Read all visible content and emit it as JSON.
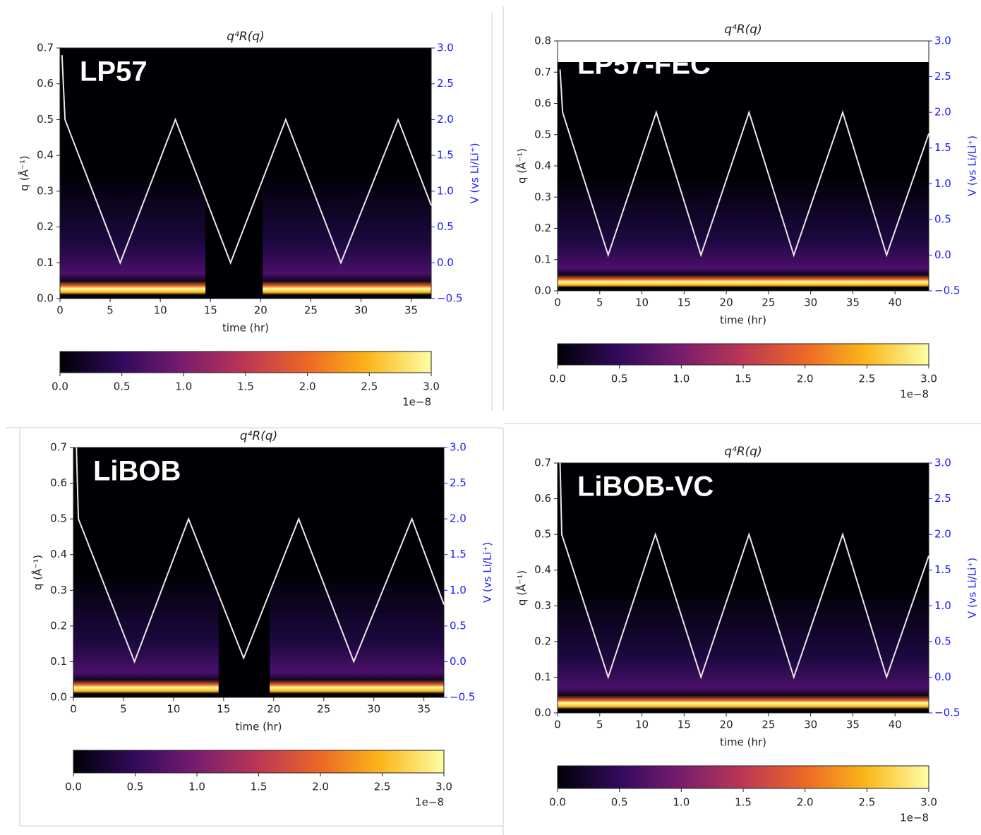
{
  "chart_data": [
    {
      "type": "heatmap",
      "title": "q⁴R(q)",
      "label": "LP57",
      "xlabel": "time (hr)",
      "ylabel": "q (Å⁻¹)",
      "y2label": "V (vs Li/Li⁺)",
      "xlim": [
        0,
        37
      ],
      "xticks": [
        0,
        5,
        10,
        15,
        20,
        25,
        30,
        35
      ],
      "ylim": [
        0,
        0.7
      ],
      "yticks": [
        {
          "value": 0,
          "label": "0.0"
        },
        {
          "value": 0.1,
          "label": "0.1"
        },
        {
          "value": 0.2,
          "label": "0.2"
        },
        {
          "value": 0.3,
          "label": "0.3"
        },
        {
          "value": 0.4,
          "label": "0.4"
        },
        {
          "value": 0.5,
          "label": "0.5"
        },
        {
          "value": 0.6,
          "label": "0.6"
        },
        {
          "value": 0.7,
          "label": "0.7"
        }
      ],
      "y2lim": [
        -0.5,
        3.0
      ],
      "y2ticks": [
        {
          "value": -0.5,
          "label": "−0.5"
        },
        {
          "value": 0,
          "label": "0.0"
        },
        {
          "value": 0.5,
          "label": "0.5"
        },
        {
          "value": 1,
          "label": "1.0"
        },
        {
          "value": 1.5,
          "label": "1.5"
        },
        {
          "value": 2,
          "label": "2.0"
        },
        {
          "value": 2.5,
          "label": "2.5"
        },
        {
          "value": 3,
          "label": "3.0"
        }
      ],
      "series": [
        {
          "color": "#e8e8e8",
          "axis": "y2",
          "x": [
            0.2,
            0.5,
            6,
            11.5,
            17,
            22.5,
            28,
            33.7,
            37
          ],
          "values": [
            2.9,
            2.0,
            0.0,
            2.0,
            0.0,
            2.0,
            0.0,
            2.0,
            0.8
          ]
        }
      ],
      "colorbar": {
        "colormap": "inferno",
        "lim": [
          0,
          3.0
        ],
        "ticks": [
          {
            "value": 0,
            "label": "0.0"
          },
          {
            "value": 0.5,
            "label": "0.5"
          },
          {
            "value": 1,
            "label": "1.0"
          },
          {
            "value": 1.5,
            "label": "1.5"
          },
          {
            "value": 2,
            "label": "2.0"
          },
          {
            "value": 2.5,
            "label": "2.5"
          },
          {
            "value": 3,
            "label": "3.0"
          }
        ],
        "offset_label": "1e−8"
      }
    },
    {
      "type": "heatmap",
      "title": "q⁴R(q)",
      "label": "LP57-FEC",
      "xlabel": "time (hr)",
      "ylabel": "q (Å⁻¹)",
      "y2label": "V (vs Li/Li⁺)",
      "xlim": [
        0,
        44
      ],
      "xticks": [
        0,
        5,
        10,
        15,
        20,
        25,
        30,
        35,
        40
      ],
      "ylim": [
        0,
        0.8
      ],
      "yticks": [
        {
          "value": 0,
          "label": "0.0"
        },
        {
          "value": 0.1,
          "label": "0.1"
        },
        {
          "value": 0.2,
          "label": "0.2"
        },
        {
          "value": 0.3,
          "label": "0.3"
        },
        {
          "value": 0.4,
          "label": "0.4"
        },
        {
          "value": 0.5,
          "label": "0.5"
        },
        {
          "value": 0.6,
          "label": "0.6"
        },
        {
          "value": 0.7,
          "label": "0.7"
        },
        {
          "value": 0.8,
          "label": "0.8"
        }
      ],
      "y2lim": [
        -0.5,
        3.0
      ],
      "y2ticks": [
        {
          "value": -0.5,
          "label": "−0.5"
        },
        {
          "value": 0,
          "label": "0.0"
        },
        {
          "value": 0.5,
          "label": "0.5"
        },
        {
          "value": 1,
          "label": "1.0"
        },
        {
          "value": 1.5,
          "label": "1.5"
        },
        {
          "value": 2,
          "label": "2.0"
        },
        {
          "value": 2.5,
          "label": "2.5"
        },
        {
          "value": 3,
          "label": "3.0"
        }
      ],
      "series": [
        {
          "color": "#e8e8e8",
          "axis": "y2",
          "x": [
            0.3,
            0.6,
            6,
            11.7,
            17,
            22.7,
            28,
            33.8,
            39,
            44
          ],
          "values": [
            2.6,
            2.0,
            0.0,
            2.0,
            0.0,
            2.0,
            0.0,
            2.0,
            0.0,
            1.7
          ]
        }
      ],
      "colorbar": {
        "colormap": "inferno",
        "lim": [
          0,
          3.0
        ],
        "ticks": [
          {
            "value": 0,
            "label": "0.0"
          },
          {
            "value": 0.5,
            "label": "0.5"
          },
          {
            "value": 1,
            "label": "1.0"
          },
          {
            "value": 1.5,
            "label": "1.5"
          },
          {
            "value": 2,
            "label": "2.0"
          },
          {
            "value": 2.5,
            "label": "2.5"
          },
          {
            "value": 3,
            "label": "3.0"
          }
        ],
        "offset_label": "1e−8"
      }
    },
    {
      "type": "heatmap",
      "title": "q⁴R(q)",
      "label": "LiBOB",
      "xlabel": "time (hr)",
      "ylabel": "q (Å⁻¹)",
      "y2label": "V (vs Li/Li⁺)",
      "xlim": [
        0,
        37
      ],
      "xticks": [
        0,
        5,
        10,
        15,
        20,
        25,
        30,
        35
      ],
      "ylim": [
        0,
        0.7
      ],
      "yticks": [
        {
          "value": 0,
          "label": "0.0"
        },
        {
          "value": 0.1,
          "label": "0.1"
        },
        {
          "value": 0.2,
          "label": "0.2"
        },
        {
          "value": 0.3,
          "label": "0.3"
        },
        {
          "value": 0.4,
          "label": "0.4"
        },
        {
          "value": 0.5,
          "label": "0.5"
        },
        {
          "value": 0.6,
          "label": "0.6"
        },
        {
          "value": 0.7,
          "label": "0.7"
        }
      ],
      "y2lim": [
        -0.5,
        3.0
      ],
      "y2ticks": [
        {
          "value": -0.5,
          "label": "−0.5"
        },
        {
          "value": 0,
          "label": "0.0"
        },
        {
          "value": 0.5,
          "label": "0.5"
        },
        {
          "value": 1,
          "label": "1.0"
        },
        {
          "value": 1.5,
          "label": "1.5"
        },
        {
          "value": 2,
          "label": "2.0"
        },
        {
          "value": 2.5,
          "label": "2.5"
        },
        {
          "value": 3,
          "label": "3.0"
        }
      ],
      "series": [
        {
          "color": "#e8e8e8",
          "axis": "y2",
          "x": [
            0.3,
            0.5,
            6.1,
            11.5,
            17,
            22.5,
            28,
            33.8,
            37
          ],
          "values": [
            3.0,
            2.0,
            0.0,
            2.0,
            0.05,
            2.0,
            0.0,
            2.0,
            0.8
          ]
        }
      ],
      "colorbar": {
        "colormap": "inferno",
        "lim": [
          0,
          3.0
        ],
        "ticks": [
          {
            "value": 0,
            "label": "0.0"
          },
          {
            "value": 0.5,
            "label": "0.5"
          },
          {
            "value": 1,
            "label": "1.0"
          },
          {
            "value": 1.5,
            "label": "1.5"
          },
          {
            "value": 2,
            "label": "2.0"
          },
          {
            "value": 2.5,
            "label": "2.5"
          },
          {
            "value": 3,
            "label": "3.0"
          }
        ],
        "offset_label": "1e−8"
      }
    },
    {
      "type": "heatmap",
      "title": "q⁴R(q)",
      "label": "LiBOB-VC",
      "xlabel": "time (hr)",
      "ylabel": "q (Å⁻¹)",
      "y2label": "V (vs Li/Li⁺)",
      "xlim": [
        0,
        44
      ],
      "xticks": [
        0,
        5,
        10,
        15,
        20,
        25,
        30,
        35,
        40
      ],
      "ylim": [
        0,
        0.7
      ],
      "yticks": [
        {
          "value": 0,
          "label": "0.0"
        },
        {
          "value": 0.1,
          "label": "0.1"
        },
        {
          "value": 0.2,
          "label": "0.2"
        },
        {
          "value": 0.3,
          "label": "0.3"
        },
        {
          "value": 0.4,
          "label": "0.4"
        },
        {
          "value": 0.5,
          "label": "0.5"
        },
        {
          "value": 0.6,
          "label": "0.6"
        },
        {
          "value": 0.7,
          "label": "0.7"
        }
      ],
      "y2lim": [
        -0.5,
        3.0
      ],
      "y2ticks": [
        {
          "value": -0.5,
          "label": "−0.5"
        },
        {
          "value": 0,
          "label": "0.0"
        },
        {
          "value": 0.5,
          "label": "0.5"
        },
        {
          "value": 1,
          "label": "1.0"
        },
        {
          "value": 1.5,
          "label": "1.5"
        },
        {
          "value": 2,
          "label": "2.0"
        },
        {
          "value": 2.5,
          "label": "2.5"
        },
        {
          "value": 3,
          "label": "3.0"
        }
      ],
      "series": [
        {
          "color": "#e8e8e8",
          "axis": "y2",
          "x": [
            0.3,
            0.5,
            6,
            11.6,
            17,
            22.7,
            28,
            33.8,
            39,
            44
          ],
          "values": [
            3.0,
            2.0,
            0.0,
            2.0,
            0.0,
            2.0,
            0.0,
            2.0,
            0.0,
            1.7
          ]
        }
      ],
      "colorbar": {
        "colormap": "inferno",
        "lim": [
          0,
          3.0
        ],
        "ticks": [
          {
            "value": 0,
            "label": "0.0"
          },
          {
            "value": 0.5,
            "label": "0.5"
          },
          {
            "value": 1,
            "label": "1.0"
          },
          {
            "value": 1.5,
            "label": "1.5"
          },
          {
            "value": 2,
            "label": "2.0"
          },
          {
            "value": 2.5,
            "label": "2.5"
          },
          {
            "value": 3,
            "label": "3.0"
          }
        ],
        "offset_label": "1e−8"
      }
    }
  ]
}
